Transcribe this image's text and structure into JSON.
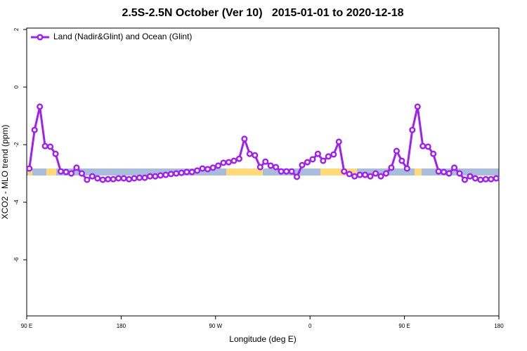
{
  "chart_data": {
    "type": "line",
    "title": "2.5S-2.5N October (Ver 10)   2015-01-01 to 2020-12-18",
    "xlabel": "Longitude (deg E)",
    "ylabel": "XCO2 - MLO trend (ppm)",
    "xlim": [
      90,
      540
    ],
    "xticks": [
      {
        "value": 90,
        "label": "90 E"
      },
      180,
      {
        "value": 270,
        "label": "90 W"
      },
      {
        "value": 360,
        "label": "0"
      },
      {
        "value": 450,
        "label": "90 E"
      },
      {
        "value": 540,
        "label": "180"
      }
    ],
    "ylim": [
      -7.95,
      2.05
    ],
    "yticks": [
      2,
      0,
      -2,
      -4,
      -6
    ],
    "legend": "top-left",
    "x": [
      92.5,
      97.5,
      102.5,
      107.5,
      112.5,
      117.5,
      122.5,
      127.5,
      132.5,
      137.5,
      142.5,
      147.5,
      152.5,
      157.5,
      162.5,
      167.5,
      172.5,
      177.5,
      182.5,
      187.5,
      192.5,
      197.5,
      202.5,
      207.5,
      212.5,
      217.5,
      222.5,
      227.5,
      232.5,
      237.5,
      242.5,
      247.5,
      252.5,
      257.5,
      262.5,
      267.5,
      272.5,
      277.5,
      282.5,
      287.5,
      292.5,
      297.5,
      302.5,
      307.5,
      312.5,
      317.5,
      322.5,
      327.5,
      332.5,
      337.5,
      342.5,
      347.5,
      352.5,
      357.5,
      362.5,
      367.5,
      372.5,
      377.5,
      382.5,
      387.5,
      392.5,
      397.5,
      402.5,
      407.5,
      412.5,
      417.5,
      422.5,
      427.5,
      432.5,
      437.5,
      442.5,
      447.5,
      452.5,
      457.5,
      462.5,
      467.5,
      472.5,
      477.5,
      482.5,
      487.5,
      492.5,
      497.5,
      502.5,
      507.5,
      512.5,
      517.5,
      522.5,
      527.5,
      532.5,
      537.5
    ],
    "series": [
      {
        "name": "Land (Nadir&Glint) and Ocean (Glint)",
        "color": "#a020f0",
        "values": [
          -2.83,
          -1.49,
          -0.68,
          -2.05,
          -2.07,
          -2.32,
          -2.93,
          -2.95,
          -3.0,
          -2.8,
          -3.0,
          -3.22,
          -3.1,
          -3.17,
          -3.22,
          -3.2,
          -3.2,
          -3.17,
          -3.17,
          -3.2,
          -3.17,
          -3.15,
          -3.15,
          -3.1,
          -3.1,
          -3.07,
          -3.05,
          -3.02,
          -3.0,
          -2.98,
          -2.95,
          -2.95,
          -2.9,
          -2.83,
          -2.85,
          -2.8,
          -2.73,
          -2.63,
          -2.61,
          -2.56,
          -2.49,
          -1.8,
          -2.32,
          -2.37,
          -2.78,
          -2.59,
          -2.73,
          -2.78,
          -2.93,
          -2.93,
          -2.93,
          -3.12,
          -2.71,
          -2.61,
          -2.51,
          -2.32,
          -2.56,
          -2.41,
          -2.34,
          -1.9,
          -2.93,
          -3.02,
          -3.1,
          -3.05,
          -3.05,
          -3.1,
          -3.0,
          -3.1,
          -3.0,
          -2.8,
          -2.22,
          -2.56,
          -2.83,
          -1.49,
          -0.68,
          -2.05,
          -2.07,
          -2.32,
          -2.93,
          -2.95,
          -3.0,
          -2.8,
          -3.0,
          -3.22,
          -3.1,
          -3.17,
          -3.22,
          -3.2,
          -3.2,
          -3.17
        ]
      }
    ]
  }
}
